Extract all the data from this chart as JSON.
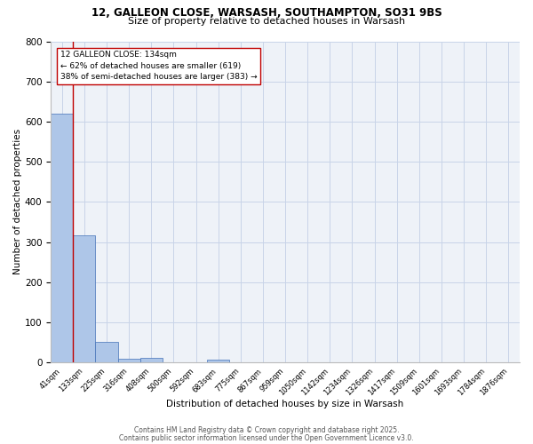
{
  "title_line1": "12, GALLEON CLOSE, WARSASH, SOUTHAMPTON, SO31 9BS",
  "title_line2": "Size of property relative to detached houses in Warsash",
  "bar_labels": [
    "41sqm",
    "133sqm",
    "225sqm",
    "316sqm",
    "408sqm",
    "500sqm",
    "592sqm",
    "683sqm",
    "775sqm",
    "867sqm",
    "959sqm",
    "1050sqm",
    "1142sqm",
    "1234sqm",
    "1326sqm",
    "1417sqm",
    "1509sqm",
    "1601sqm",
    "1693sqm",
    "1784sqm",
    "1876sqm"
  ],
  "bar_values": [
    619,
    316,
    52,
    10,
    12,
    0,
    0,
    7,
    0,
    0,
    0,
    0,
    0,
    0,
    0,
    0,
    0,
    0,
    0,
    0,
    0
  ],
  "bar_color": "#aec6e8",
  "bar_edge_color": "#4472b8",
  "vline_x": 0.5,
  "property_label": "12 GALLEON CLOSE: 134sqm",
  "annotation_line2": "← 62% of detached houses are smaller (619)",
  "annotation_line3": "38% of semi-detached houses are larger (383) →",
  "vline_color": "#c00000",
  "xlabel": "Distribution of detached houses by size in Warsash",
  "ylabel": "Number of detached properties",
  "ylim": [
    0,
    800
  ],
  "yticks": [
    0,
    100,
    200,
    300,
    400,
    500,
    600,
    700,
    800
  ],
  "grid_color": "#c8d4e8",
  "background_color": "#eef2f8",
  "footer_line1": "Contains HM Land Registry data © Crown copyright and database right 2025.",
  "footer_line2": "Contains public sector information licensed under the Open Government Licence v3.0."
}
